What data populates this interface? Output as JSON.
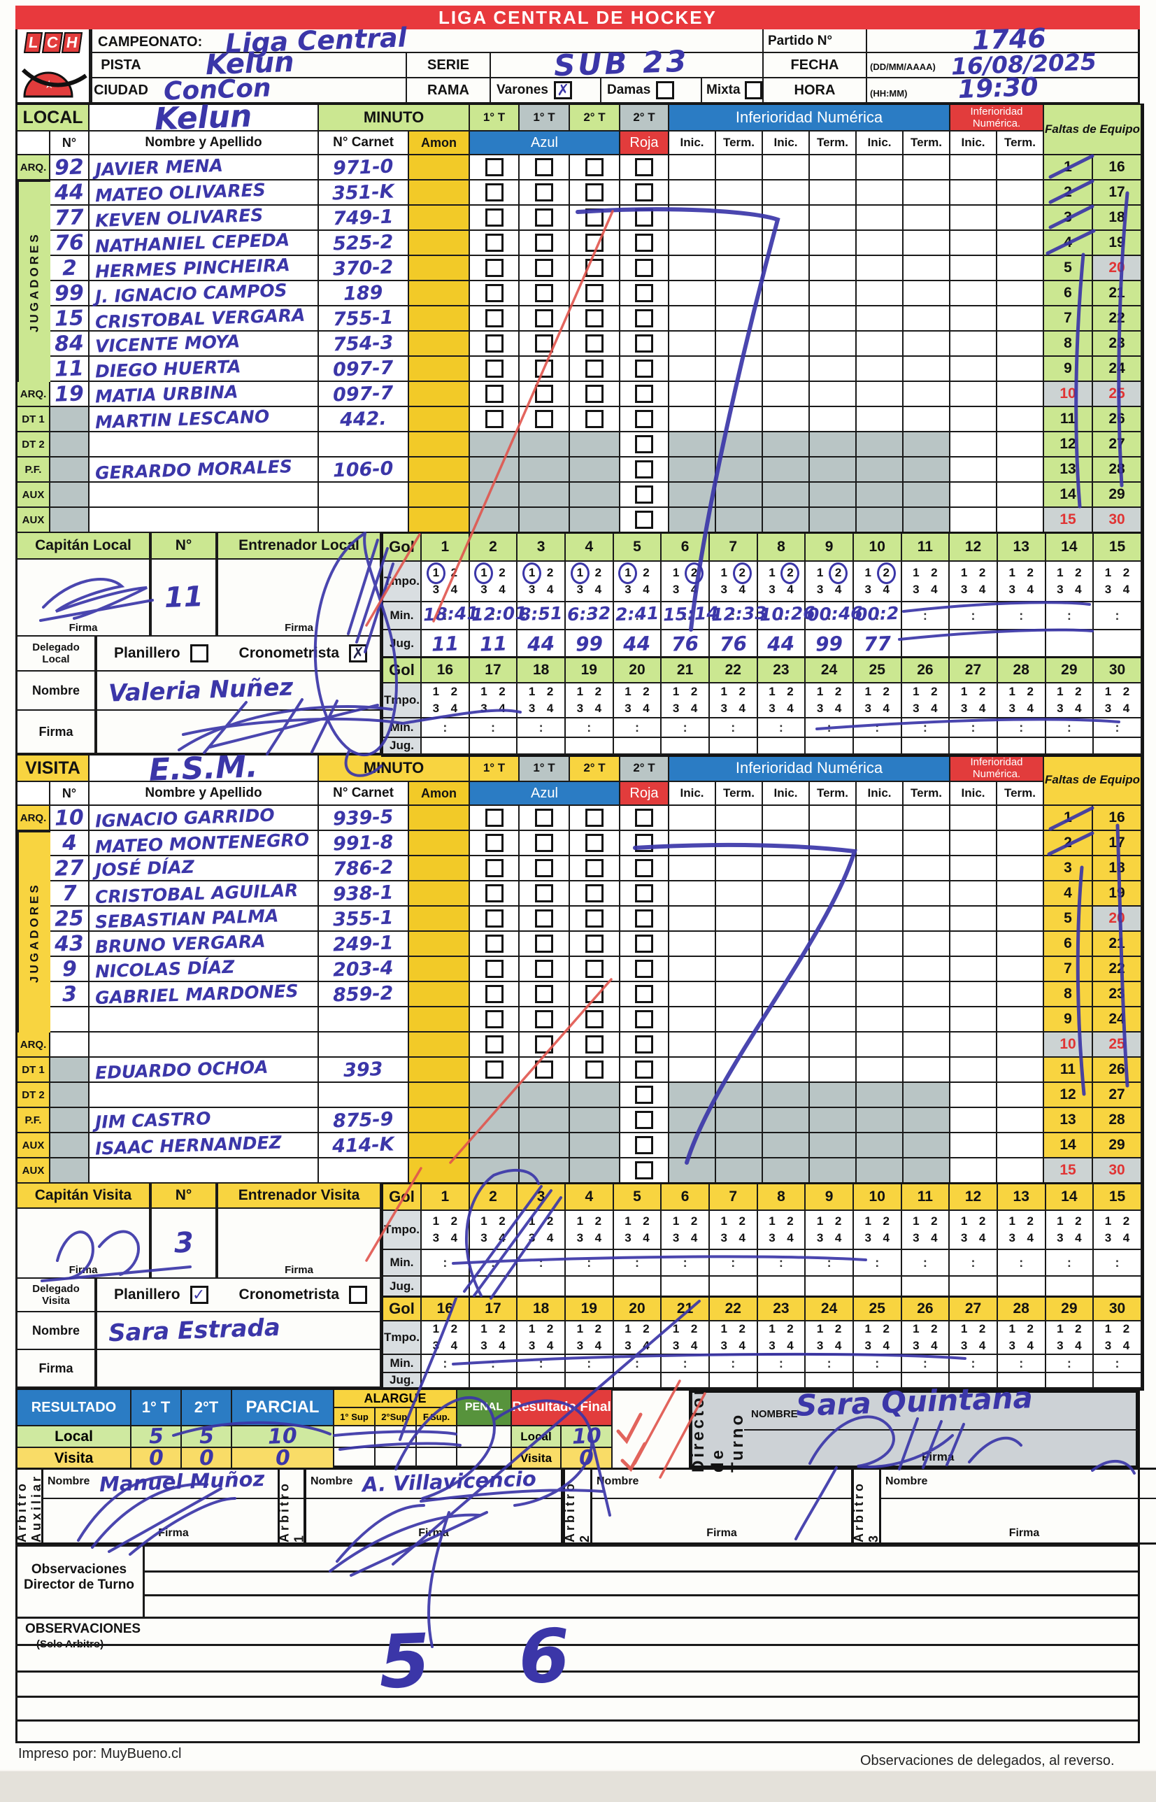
{
  "title": "LIGA CENTRAL DE HOCKEY",
  "logo_text": "LCH",
  "header": {
    "campeonato_label": "CAMPEONATO:",
    "campeonato_value": "Liga Central",
    "pista_label": "PISTA",
    "pista_value": "Kelun",
    "ciudad_label": "CIUDAD",
    "ciudad_value": "ConCon",
    "serie_label": "SERIE",
    "serie_value": "SUB 23",
    "rama_label": "RAMA",
    "rama_varones": "Varones",
    "rama_varones_mark": "✗",
    "rama_damas": "Damas",
    "rama_damas_mark": "",
    "rama_mixta": "Mixta",
    "rama_mixta_mark": "",
    "partido_label": "Partido N°",
    "partido_value": "1746",
    "fecha_label": "FECHA",
    "fecha_hint": "(DD/MM/AAAA)",
    "fecha_value": "16/08/2025",
    "hora_label": "HORA",
    "hora_hint": "(HH:MM)",
    "hora_value": "19:30"
  },
  "labels": {
    "minuto": "MINUTO",
    "t1": "1° T",
    "t2": "2° T",
    "inferioridad": "Inferioridad Numérica",
    "inferioridad2": "Inferioridad Numérica.",
    "faltas": "Faltas de Equipo",
    "num": "N°",
    "nombre": "Nombre y Apellido",
    "carnet": "N° Carnet",
    "amon": "Amon",
    "azul": "Azul",
    "roja": "Roja",
    "inic": "Inic.",
    "term": "Term.",
    "jugadores": "JUGADORES",
    "gol": "Gol",
    "tmpo": "Tmpo.",
    "min": "Min.",
    "jug": "Jug.",
    "firma": "Firma",
    "nombre_row": "Nombre",
    "planillero": "Planillero",
    "cronometrista": "Cronometrista"
  },
  "local": {
    "label": "LOCAL",
    "name": "Kelun",
    "captain_label": "Capitán Local",
    "captain_num_label": "N°",
    "captain_num": "11",
    "coach_label": "Entrenador Local",
    "delegado_label": "Delegado Local",
    "delegado_nombre": "Valeria Nuñez",
    "planillero_mark": "",
    "cronometrista_mark": "✗",
    "roster": [
      {
        "role": "ARQ.",
        "num": "92",
        "name": "JAVIER MENA",
        "carnet": "971-0"
      },
      {
        "role": "",
        "num": "44",
        "name": "MATEO OLIVARES",
        "carnet": "351-K"
      },
      {
        "role": "",
        "num": "77",
        "name": "KEVEN OLIVARES",
        "carnet": "749-1"
      },
      {
        "role": "",
        "num": "76",
        "name": "NATHANIEL CEPEDA",
        "carnet": "525-2"
      },
      {
        "role": "",
        "num": "2",
        "name": "HERMES PINCHEIRA",
        "carnet": "370-2"
      },
      {
        "role": "",
        "num": "99",
        "name": "J. IGNACIO CAMPOS",
        "carnet": "189"
      },
      {
        "role": "",
        "num": "15",
        "name": "CRISTOBAL VERGARA",
        "carnet": "755-1"
      },
      {
        "role": "",
        "num": "84",
        "name": "VICENTE MOYA",
        "carnet": "754-3"
      },
      {
        "role": "",
        "num": "11",
        "name": "DIEGO HUERTA",
        "carnet": "097-7"
      },
      {
        "role": "ARQ.",
        "num": "19",
        "name": "MATIA URBINA",
        "carnet": "097-7"
      },
      {
        "role": "DT 1",
        "num": "",
        "name": "MARTIN LESCANO",
        "carnet": "442."
      },
      {
        "role": "DT 2",
        "num": "",
        "name": "",
        "carnet": ""
      },
      {
        "role": "P.F.",
        "num": "",
        "name": "GERARDO MORALES",
        "carnet": "106-0"
      },
      {
        "role": "AUX",
        "num": "",
        "name": "",
        "carnet": ""
      },
      {
        "role": "AUX",
        "num": "",
        "name": "",
        "carnet": ""
      }
    ],
    "goals": [
      {
        "tempo": "1",
        "min": "18:41",
        "jug": "11"
      },
      {
        "tempo": "1",
        "min": "12:01",
        "jug": "11"
      },
      {
        "tempo": "1",
        "min": "8:51",
        "jug": "44"
      },
      {
        "tempo": "1",
        "min": "6:32",
        "jug": "99"
      },
      {
        "tempo": "1",
        "min": "2:41",
        "jug": "44"
      },
      {
        "tempo": "2",
        "min": "15:14",
        "jug": "76"
      },
      {
        "tempo": "2",
        "min": "12:33",
        "jug": "76"
      },
      {
        "tempo": "2",
        "min": "10:26",
        "jug": "44"
      },
      {
        "tempo": "2",
        "min": "00:46",
        "jug": "99"
      },
      {
        "tempo": "2",
        "min": "00:2",
        "jug": "77"
      }
    ]
  },
  "visita": {
    "label": "VISITA",
    "name": "E.S.M.",
    "captain_label": "Capitán Visita",
    "captain_num_label": "N°",
    "captain_num": "3",
    "coach_label": "Entrenador Visita",
    "delegado_label": "Delegado Visita",
    "delegado_nombre": "Sara Estrada",
    "planillero_mark": "✓",
    "cronometrista_mark": "",
    "roster": [
      {
        "role": "ARQ.",
        "num": "10",
        "name": "IGNACIO GARRIDO",
        "carnet": "939-5"
      },
      {
        "role": "",
        "num": "4",
        "name": "MATEO MONTENEGRO",
        "carnet": "991-8"
      },
      {
        "role": "",
        "num": "27",
        "name": "JOSÉ DÍAZ",
        "carnet": "786-2"
      },
      {
        "role": "",
        "num": "7",
        "name": "CRISTOBAL AGUILAR",
        "carnet": "938-1"
      },
      {
        "role": "",
        "num": "25",
        "name": "SEBASTIAN PALMA",
        "carnet": "355-1"
      },
      {
        "role": "",
        "num": "43",
        "name": "BRUNO VERGARA",
        "carnet": "249-1"
      },
      {
        "role": "",
        "num": "9",
        "name": "NICOLAS DÍAZ",
        "carnet": "203-4"
      },
      {
        "role": "",
        "num": "3",
        "name": "GABRIEL MARDONES",
        "carnet": "859-2"
      },
      {
        "role": "",
        "num": "",
        "name": "",
        "carnet": ""
      },
      {
        "role": "ARQ.",
        "num": "",
        "name": "",
        "carnet": ""
      },
      {
        "role": "DT 1",
        "num": "",
        "name": "EDUARDO OCHOA",
        "carnet": "393"
      },
      {
        "role": "DT 2",
        "num": "",
        "name": "",
        "carnet": ""
      },
      {
        "role": "P.F.",
        "num": "",
        "name": "JIM CASTRO",
        "carnet": "875-9"
      },
      {
        "role": "AUX",
        "num": "",
        "name": "ISAAC HERNANDEZ",
        "carnet": "414-K"
      },
      {
        "role": "AUX",
        "num": "",
        "name": "",
        "carnet": ""
      }
    ],
    "goals": []
  },
  "resultado": {
    "label": "RESULTADO",
    "t1": "1° T",
    "t2": "2°T",
    "parcial": "PARCIAL",
    "alargue": "ALARGUE",
    "sup1": "1° Sup",
    "sup2": "2°Sup.",
    "fsup": "F.Sup.",
    "penal": "PENAL",
    "final_label": "Resultado Final",
    "local_label": "Local",
    "visita_label": "Visita",
    "local": {
      "t1": "5",
      "t2": "5",
      "parcial": "10",
      "final": "10"
    },
    "visita": {
      "t1": "0",
      "t2": "0",
      "parcial": "0",
      "final": "0"
    }
  },
  "director": {
    "label": "Director de Turno",
    "nombre_label": "NOMBRE",
    "nombre": "Sara Quintana",
    "firma_label": "Firma"
  },
  "arbitros": [
    {
      "label": "Arbitro Auxiliar",
      "nombre_label": "Nombre",
      "nombre": "Manuel Muñoz",
      "firma_label": "Firma"
    },
    {
      "label": "Arbitro 1",
      "nombre_label": "Nombre",
      "nombre": "A. Villavicencio",
      "firma_label": "Firma"
    },
    {
      "label": "Arbitro 2",
      "nombre_label": "Nombre",
      "nombre": "",
      "firma_label": "Firma"
    },
    {
      "label": "Arbitro 3",
      "nombre_label": "Nombre",
      "nombre": "",
      "firma_label": "Firma"
    }
  ],
  "observaciones": {
    "dt_label1": "Observaciones",
    "dt_label2": "Director de Turno",
    "solo_label": "OBSERVACIONES",
    "solo_sub": "(Solo Arbitro)",
    "handwriting": "5  6"
  },
  "footer": {
    "left": "Impreso por: MuyBueno.cl",
    "right": "Observaciones de delegados, al reverso."
  },
  "numbers": {
    "faltas": [
      1,
      2,
      3,
      4,
      5,
      6,
      7,
      8,
      9,
      10,
      11,
      12,
      13,
      14,
      15,
      16,
      17,
      18,
      19,
      20,
      21,
      22,
      23,
      24,
      25,
      26,
      27,
      28,
      29,
      30
    ],
    "gol": [
      1,
      2,
      3,
      4,
      5,
      6,
      7,
      8,
      9,
      10,
      11,
      12,
      13,
      14,
      15,
      16,
      17,
      18,
      19,
      20,
      21,
      22,
      23,
      24,
      25,
      26,
      27,
      28,
      29,
      30
    ],
    "tmpo_digits": [
      "1",
      "2",
      "3",
      "4"
    ]
  },
  "colors": {
    "banner": "#e8393d",
    "blue": "#2b7cc4",
    "green": "#cbe791",
    "yellow": "#f8d440",
    "amon": "#f2ca28",
    "penal": "#57933c",
    "pen": "#3b36a8",
    "redpen": "#e0544c"
  }
}
